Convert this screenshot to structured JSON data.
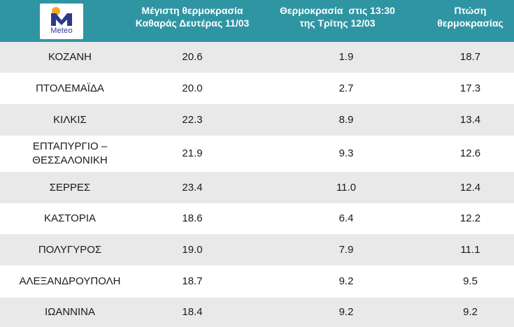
{
  "brand": {
    "logo_text": "Meteo"
  },
  "colors": {
    "header_bg": "#2f95a3",
    "row_alt_bg": "#e9e9e9",
    "logo_orange": "#f5a623",
    "logo_blue": "#2a3a8c"
  },
  "headers": {
    "max_temp_line1": "Μέγιστη θερμοκρασία",
    "max_temp_line2": "Καθαράς Δευτέρας 11/03",
    "temp_1330_line1": "Θερμοκρασία  στις 13:30",
    "temp_1330_line2": "της Τρίτης 12/03",
    "drop_line1": "Πτώση",
    "drop_line2": "θερμοκρασίας"
  },
  "rows": [
    {
      "city": "ΚΟΖΑΝΗ",
      "max": "20.6",
      "t1330": "1.9",
      "drop": "18.7"
    },
    {
      "city": "ΠΤΟΛΕΜΑΪΔΑ",
      "max": "20.0",
      "t1330": "2.7",
      "drop": "17.3"
    },
    {
      "city": "ΚΙΛΚΙΣ",
      "max": "22.3",
      "t1330": "8.9",
      "drop": "13.4"
    },
    {
      "city_line1": "ΕΠΤΑΠΥΡΓΙΟ –",
      "city_line2": "ΘΕΣΣΑΛΟΝΙΚΗ",
      "max": "21.9",
      "t1330": "9.3",
      "drop": "12.6"
    },
    {
      "city": "ΣΕΡΡΕΣ",
      "max": "23.4",
      "t1330": "11.0",
      "drop": "12.4"
    },
    {
      "city": "ΚΑΣΤΟΡΙΑ",
      "max": "18.6",
      "t1330": "6.4",
      "drop": "12.2"
    },
    {
      "city": "ΠΟΛΥΓΥΡΟΣ",
      "max": "19.0",
      "t1330": "7.9",
      "drop": "11.1"
    },
    {
      "city": "ΑΛΕΞΑΝΔΡΟΥΠΟΛΗ",
      "max": "18.7",
      "t1330": "9.2",
      "drop": "9.5"
    },
    {
      "city": "ΙΩΑΝΝΙΝΑ",
      "max": "18.4",
      "t1330": "9.2",
      "drop": "9.2"
    }
  ]
}
